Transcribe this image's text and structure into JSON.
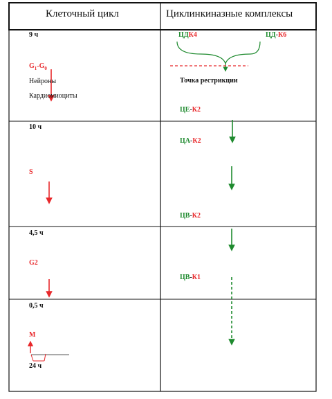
{
  "headers": {
    "left": "Клеточный цикл",
    "right": "Циклинкиназные комплексы"
  },
  "colors": {
    "red": "#e8282b",
    "green": "#1e8a2e",
    "line": "#111111"
  },
  "left": {
    "g1": {
      "duration": "9 ч",
      "phase_main": "G",
      "phase_sub1": "1",
      "phase_mid": "-G",
      "phase_sub2": "0",
      "cell1": "Нейроны",
      "cell2": "Кардиомиоциты"
    },
    "s": {
      "duration": "10 ч",
      "phase": "S"
    },
    "g2": {
      "duration": "4,5 ч",
      "phase": "G2"
    },
    "m": {
      "duration": "0,5 ч",
      "phase": "M",
      "total": "24 ч"
    }
  },
  "right": {
    "cdk4": {
      "cyclin": "ЦД",
      "kinase": "К4"
    },
    "cdk6": {
      "cyclin": "ЦД",
      "dash": "-",
      "kinase": "К6"
    },
    "restriction": "Точка рестрикции",
    "cdk2_e": {
      "cyclin": "ЦЕ",
      "dash": "-",
      "kinase": "К2"
    },
    "cdk2_a": {
      "cyclin": "ЦА",
      "dash": "-",
      "kinase": "К2"
    },
    "cdk2_b": {
      "cyclin": "ЦВ",
      "dash": "-",
      "kinase": "К2"
    },
    "cdk1_b": {
      "cyclin": "ЦВ",
      "dash": "-",
      "kinase": "К1"
    }
  }
}
